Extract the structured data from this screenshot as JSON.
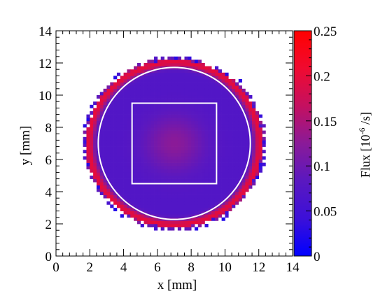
{
  "chart_data": {
    "type": "heatmap",
    "title": "",
    "xlabel": "x [mm]",
    "ylabel": "y [mm]",
    "xlim": [
      0,
      14
    ],
    "ylim": [
      0,
      14
    ],
    "x_major_ticks": [
      0,
      2,
      4,
      6,
      8,
      10,
      12,
      14
    ],
    "y_major_ticks": [
      0,
      2,
      4,
      6,
      8,
      10,
      12,
      14
    ],
    "x_tick_labels": [
      "0",
      "2",
      "4",
      "6",
      "8",
      "10",
      "12",
      "14"
    ],
    "y_tick_labels": [
      "0",
      "2",
      "4",
      "6",
      "8",
      "10",
      "12",
      "14"
    ],
    "colorbar": {
      "label_main": "Flux [10",
      "label_exp": "-6",
      "label_tail": " /s]",
      "range": [
        0,
        0.25
      ],
      "ticks": [
        0,
        0.05,
        0.1,
        0.15,
        0.2,
        0.25
      ],
      "tick_labels": [
        "0",
        "0.05",
        "0.1",
        "0.15",
        "0.2",
        "0.25"
      ],
      "palette": [
        "#0000ff",
        "#3c10d8",
        "#5a18c0",
        "#8a1a98",
        "#c41060",
        "#f00a30",
        "#ff0000"
      ]
    },
    "field": {
      "shape": "disk",
      "center": [
        7.0,
        7.0
      ],
      "radius": 5.35,
      "bin_size_mm": 0.2,
      "background_flux": 0.072,
      "center_flux": 0.125,
      "rim_peak_flux": 0.2,
      "rim_radius": 5.05
    },
    "overlays": [
      {
        "shape": "circle",
        "center": [
          7.0,
          7.0
        ],
        "radius": 4.5,
        "color": "#ffffff"
      },
      {
        "shape": "rectangle",
        "x_range": [
          4.5,
          9.5
        ],
        "y_range": [
          4.5,
          9.5
        ],
        "color": "#ffffff"
      }
    ]
  }
}
